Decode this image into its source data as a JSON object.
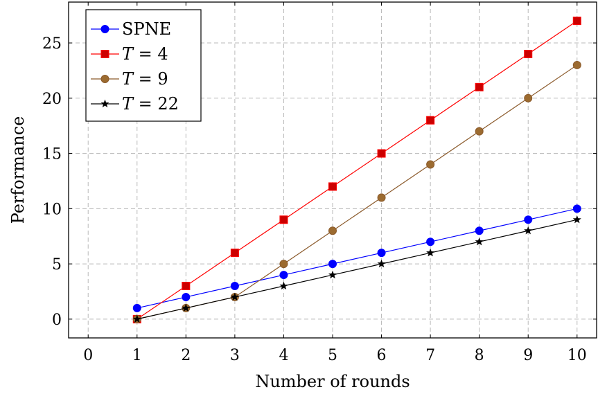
{
  "chart_data": {
    "type": "line",
    "xlabel": "Number of rounds",
    "ylabel": "Performance",
    "xlim": [
      -0.4,
      10.4
    ],
    "ylim": [
      -1.7,
      28.7
    ],
    "xticks": [
      0,
      1,
      2,
      3,
      4,
      5,
      6,
      7,
      8,
      9,
      10
    ],
    "yticks": [
      0,
      5,
      10,
      15,
      20,
      25
    ],
    "grid": true,
    "legend_position": "top-left",
    "series": [
      {
        "name": "SPNE",
        "name_parts": [
          "SPNE"
        ],
        "color": "#0000ff",
        "marker": "circle",
        "x": [
          1,
          2,
          3,
          4,
          5,
          6,
          7,
          8,
          9,
          10
        ],
        "y": [
          1,
          2,
          3,
          4,
          5,
          6,
          7,
          8,
          9,
          10
        ]
      },
      {
        "name": "T = 4",
        "name_parts": [
          "T",
          " = 4"
        ],
        "color": "#ff0000",
        "fill": "#cc0000",
        "marker": "square",
        "x": [
          1,
          2,
          3,
          4,
          5,
          6,
          7,
          8,
          9,
          10
        ],
        "y": [
          0,
          3,
          6,
          9,
          12,
          15,
          18,
          21,
          24,
          27
        ]
      },
      {
        "name": "T = 9",
        "name_parts": [
          "T",
          " = 9"
        ],
        "color": "#8b5a2b",
        "fill": "#9c6b30",
        "marker": "circle",
        "x": [
          1,
          2,
          3,
          4,
          5,
          6,
          7,
          8,
          9,
          10
        ],
        "y": [
          0,
          1,
          2,
          5,
          8,
          11,
          14,
          17,
          20,
          23
        ]
      },
      {
        "name": "T = 22",
        "name_parts": [
          "T",
          " = 22"
        ],
        "color": "#000000",
        "marker": "star",
        "x": [
          1,
          2,
          3,
          4,
          5,
          6,
          7,
          8,
          9,
          10
        ],
        "y": [
          0,
          1,
          2,
          3,
          4,
          5,
          6,
          7,
          8,
          9
        ]
      }
    ]
  }
}
